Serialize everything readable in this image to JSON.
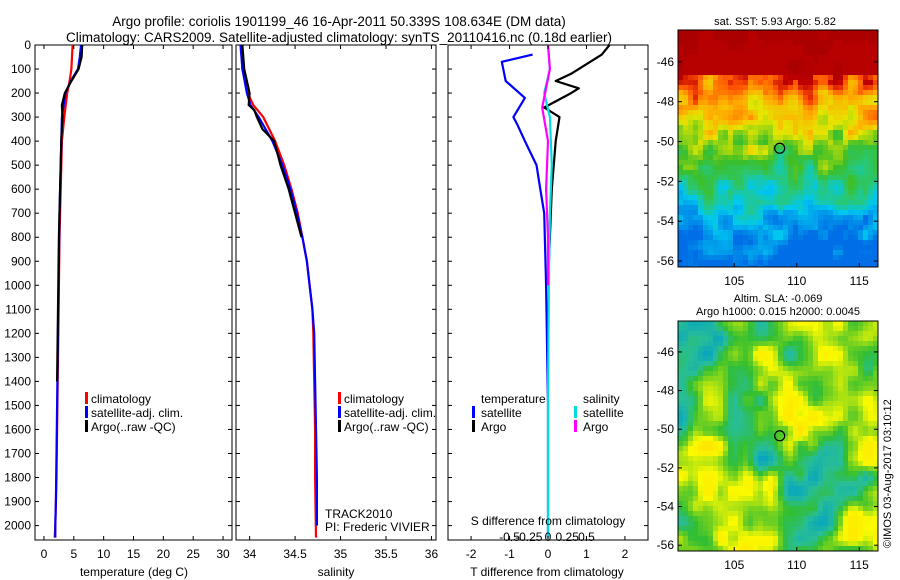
{
  "header": {
    "line1": "Argo profile: coriolis 1901199_46 16-Apr-2011 50.339S 108.634E (DM data)",
    "line2": "Climatology: CARS2009. Satellite-adjusted climatology: synTS_20110416.nc (0.18d earlier)"
  },
  "colors": {
    "climatology": "#ff0000",
    "satellite": "#0000ff",
    "argo": "#000000",
    "salinity_satellite": "#00dddd",
    "salinity_argo": "#ff00ff"
  },
  "chart_data": [
    {
      "type": "line",
      "id": "temperature-profile",
      "xlabel": "temperature (deg C)",
      "xlim": [
        -1.5,
        31.5
      ],
      "ylim": [
        2060,
        0
      ],
      "xticks": [
        0,
        5,
        10,
        15,
        20,
        25,
        30
      ],
      "yticks": [
        0,
        100,
        200,
        300,
        400,
        500,
        600,
        700,
        800,
        900,
        1000,
        1100,
        1200,
        1300,
        1400,
        1500,
        1600,
        1700,
        1800,
        1900,
        2000
      ],
      "legend": [
        "climatology",
        "satellite-adj. clim.",
        "Argo(..raw -QC)"
      ],
      "legend_position": "center-right",
      "series": [
        {
          "name": "climatology",
          "color": "#ff0000",
          "x": [
            4.8,
            4.6,
            4.3,
            3.9,
            3.4,
            3.0,
            2.8,
            2.6,
            2.5,
            2.4,
            2.3,
            2.2,
            2.1,
            2.0,
            1.9,
            1.8
          ],
          "y": [
            0,
            100,
            150,
            200,
            300,
            400,
            600,
            800,
            1000,
            1200,
            1400,
            1600,
            1800,
            1900,
            2000,
            2050
          ]
        },
        {
          "name": "satellite-adj. clim.",
          "color": "#0000ff",
          "x": [
            6.2,
            6.0,
            5.7,
            4.5,
            3.6,
            3.0,
            2.8,
            2.6,
            2.5,
            2.4,
            2.3,
            2.2,
            2.1,
            2.0,
            1.9,
            1.9
          ],
          "y": [
            0,
            50,
            100,
            150,
            200,
            300,
            500,
            700,
            900,
            1100,
            1300,
            1500,
            1700,
            1900,
            2000,
            2050
          ]
        },
        {
          "name": "Argo(..raw -QC)",
          "color": "#000000",
          "x": [
            6.4,
            6.3,
            5.8,
            4.6,
            3.5,
            3.0,
            3.1,
            2.9,
            2.7,
            2.5,
            2.4,
            2.3,
            2.2
          ],
          "y": [
            0,
            50,
            100,
            150,
            200,
            250,
            300,
            400,
            600,
            800,
            1000,
            1200,
            1400
          ]
        }
      ]
    },
    {
      "type": "line",
      "id": "salinity-profile",
      "xlabel": "salinity",
      "xlim": [
        33.85,
        36.05
      ],
      "ylim": [
        2060,
        0
      ],
      "xticks": [
        34,
        34.5,
        35,
        35.5,
        36
      ],
      "legend": [
        "climatology",
        "satellite-adj. clim.",
        "Argo(..raw -QC)"
      ],
      "legend_position": "center-right",
      "annotation": [
        "TRACK2010",
        "PI: Frederic VIVIER"
      ],
      "series": [
        {
          "name": "climatology",
          "color": "#ff0000",
          "x": [
            33.91,
            33.92,
            33.98,
            34.04,
            34.15,
            34.28,
            34.38,
            34.46,
            34.53,
            34.58,
            34.63,
            34.66,
            34.69,
            34.7,
            34.71,
            34.72,
            34.72,
            34.73
          ],
          "y": [
            0,
            100,
            200,
            250,
            300,
            400,
            500,
            600,
            700,
            800,
            900,
            1000,
            1100,
            1200,
            1400,
            1600,
            1800,
            2050
          ]
        },
        {
          "name": "satellite-adj. clim.",
          "color": "#0000ff",
          "x": [
            33.9,
            33.92,
            33.97,
            34.01,
            34.1,
            34.25,
            34.36,
            34.45,
            34.52,
            34.58,
            34.63,
            34.66,
            34.69,
            34.71,
            34.72,
            34.73,
            34.74,
            34.74
          ],
          "y": [
            0,
            100,
            200,
            250,
            300,
            400,
            500,
            600,
            700,
            800,
            900,
            1000,
            1100,
            1200,
            1400,
            1600,
            1800,
            2000
          ]
        },
        {
          "name": "Argo(..raw -QC)",
          "color": "#000000",
          "x": [
            33.92,
            33.94,
            34.0,
            33.99,
            34.05,
            34.08,
            34.14,
            34.27,
            34.34,
            34.43,
            34.5,
            34.57
          ],
          "y": [
            0,
            100,
            200,
            250,
            270,
            300,
            350,
            400,
            500,
            600,
            700,
            800
          ]
        }
      ]
    },
    {
      "type": "line",
      "id": "difference-profile",
      "xlabel": "T difference from climatology",
      "xlabel2": "S difference from climatology",
      "xlim": [
        -2.6,
        2.6
      ],
      "ylim": [
        2060,
        0
      ],
      "xticks": [
        -2,
        -1,
        0,
        1,
        2
      ],
      "xticks2": [
        "-0.5",
        "-0.25",
        "0",
        "0.25",
        "0.5"
      ],
      "legend_headers": [
        "temperature",
        "salinity"
      ],
      "legend": [
        "satellite",
        "Argo",
        "satellite",
        "Argo"
      ],
      "legend_position": "center",
      "series": [
        {
          "name": "satellite",
          "color": "#0000ff",
          "x": [
            -0.4,
            -1.2,
            -1.1,
            -0.6,
            -0.9,
            -0.8,
            -0.6,
            -0.3,
            -0.2,
            -0.1,
            -0.05,
            0.0,
            0.0
          ],
          "y": [
            40,
            70,
            150,
            220,
            300,
            330,
            400,
            500,
            600,
            700,
            1000,
            1500,
            2050
          ]
        },
        {
          "name": "Argo",
          "color": "#000000",
          "x": [
            1.6,
            1.4,
            0.6,
            0.2,
            0.8,
            0.6,
            -0.1,
            0.3,
            0.2,
            0.1,
            0.05,
            0.0
          ],
          "y": [
            0,
            40,
            120,
            150,
            180,
            200,
            260,
            300,
            400,
            600,
            800,
            1000
          ]
        },
        {
          "name": "satellite",
          "color": "#00dddd",
          "x": [
            0.0,
            0.05,
            -0.1,
            0.05,
            0.1,
            0.05,
            0.02,
            0.0,
            0.0
          ],
          "y": [
            0,
            100,
            200,
            300,
            500,
            700,
            1000,
            1500,
            2050
          ]
        },
        {
          "name": "Argo",
          "color": "#ff00ff",
          "x": [
            0.0,
            0.05,
            -0.15,
            0.0,
            -0.05,
            0.0,
            0.0
          ],
          "y": [
            0,
            100,
            260,
            400,
            600,
            800,
            1000
          ]
        }
      ]
    },
    {
      "type": "heatmap",
      "id": "sst-map",
      "title": "sat. SST: 5.93 Argo: 5.82",
      "xticks": [
        105,
        110,
        115
      ],
      "yticks": [
        -46,
        -48,
        -50,
        -52,
        -54,
        -56
      ],
      "xlim": [
        100.5,
        116.5
      ],
      "ylim": [
        -56.3,
        -44.4
      ],
      "marker": {
        "lon": 108.634,
        "lat": -50.339
      }
    },
    {
      "type": "heatmap",
      "id": "sla-map",
      "title": "Altim. SLA: -0.069",
      "subtitle": "Argo h1000: 0.015 h2000: 0.0045",
      "xticks": [
        105,
        110,
        115
      ],
      "yticks": [
        -46,
        -48,
        -50,
        -52,
        -54,
        -56
      ],
      "xlim": [
        100.5,
        116.5
      ],
      "ylim": [
        -56.3,
        -44.4
      ],
      "marker": {
        "lon": 108.634,
        "lat": -50.339
      }
    }
  ],
  "watermark": "©IMOS 03-Aug-2017 03:10:12"
}
